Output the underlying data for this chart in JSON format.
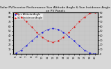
{
  "title": "Solar PV/Inverter Performance Sun Altitude Angle & Sun Incidence Angle on PV Panels",
  "background_color": "#d8d8d8",
  "plot_bg_color": "#c8c8c8",
  "grid_color": "#b0b0b0",
  "hours": [
    5,
    6,
    7,
    8,
    9,
    10,
    11,
    12,
    13,
    14,
    15,
    16,
    17,
    18,
    19,
    20
  ],
  "altitude_color": "#0000dd",
  "incidence_color": "#dd0000",
  "altitude_values": [
    2,
    8,
    18,
    28,
    38,
    47,
    53,
    55,
    53,
    47,
    38,
    28,
    18,
    8,
    2,
    0
  ],
  "incidence_values": [
    88,
    80,
    70,
    58,
    46,
    36,
    28,
    25,
    28,
    36,
    46,
    58,
    70,
    80,
    88,
    90
  ],
  "ylim_left": [
    0,
    90
  ],
  "ylim_right": [
    0,
    90
  ],
  "yticks_left": [
    0,
    10,
    20,
    30,
    40,
    50,
    60,
    70,
    80,
    90
  ],
  "yticks_right": [
    0,
    10,
    20,
    30,
    40,
    50,
    60,
    70,
    80,
    90
  ],
  "title_fontsize": 3.2,
  "tick_fontsize": 2.5,
  "legend_fontsize": 2.5,
  "marker_size": 1.2,
  "legend_blue": "Sun Altitude Angle",
  "legend_red": "Sun Incidence Angle"
}
